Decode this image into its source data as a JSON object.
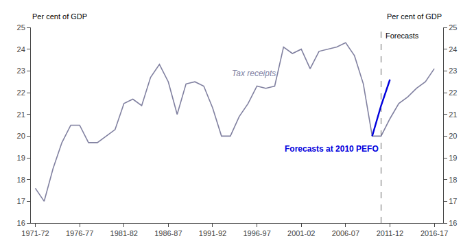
{
  "chart_data": {
    "type": "line",
    "ylabel": "Per cent of GDP",
    "y2label": "Per cent of GDP",
    "forecast_line_x": 2010.5,
    "forecast_line_label": "Forecasts",
    "series": [
      {
        "color": "#8080a0",
        "x": [
          1971.5,
          1972.5,
          1973.5,
          1974.5,
          1975.5,
          1976.5,
          1977.5,
          1978.5,
          1979.5,
          1980.5,
          1981.5,
          1982.5,
          1983.5,
          1984.5,
          1985.5,
          1986.5,
          1987.5,
          1988.5,
          1989.5,
          1990.5,
          1991.5,
          1992.5,
          1993.5,
          1994.5,
          1995.5,
          1996.5,
          1997.5,
          1998.5,
          1999.5,
          2000.5,
          2001.5,
          2002.5,
          2003.5,
          2004.5,
          2005.5,
          2006.5,
          2007.5,
          2008.5,
          2009.5,
          2010.5,
          2011.5,
          2012.5,
          2013.5,
          2014.5,
          2015.5,
          2016.5
        ],
        "values": [
          17.6,
          17.0,
          18.5,
          19.7,
          20.5,
          20.5,
          19.7,
          19.7,
          20.0,
          20.3,
          21.5,
          21.7,
          21.4,
          22.7,
          23.3,
          22.5,
          21.0,
          22.4,
          22.5,
          22.3,
          21.3,
          20.0,
          20.0,
          20.9,
          21.5,
          22.3,
          22.2,
          22.3,
          24.1,
          23.8,
          24.0,
          23.1,
          23.9,
          24.0,
          24.1,
          24.3,
          23.7,
          22.4,
          20.0,
          20.0,
          20.8,
          21.5,
          21.8,
          22.2,
          22.5,
          23.1
        ]
      },
      {
        "color": "#0000dd",
        "x": [
          2009.5,
          2010.5,
          2011.5
        ],
        "values": [
          20.0,
          21.4,
          22.6
        ]
      }
    ],
    "annotations": [
      {
        "text": "Tax receipts",
        "x": 1993.5,
        "y": 22.6,
        "color": "#8080a0"
      },
      {
        "text": "Forecasts at 2010 PEFO",
        "x": 1999.5,
        "y": 19.4,
        "color": "#0000dd"
      }
    ],
    "xlim": [
      1971.0,
      2017.5
    ],
    "xticks": [
      {
        "value": 1971.5,
        "label": "1971-72"
      },
      {
        "value": 1976.5,
        "label": "1976-77"
      },
      {
        "value": 1981.5,
        "label": "1981-82"
      },
      {
        "value": 1986.5,
        "label": "1986-87"
      },
      {
        "value": 1991.5,
        "label": "1991-92"
      },
      {
        "value": 1996.5,
        "label": "1996-97"
      },
      {
        "value": 2001.5,
        "label": "2001-02"
      },
      {
        "value": 2006.5,
        "label": "2006-07"
      },
      {
        "value": 2011.5,
        "label": "2011-12"
      },
      {
        "value": 2016.5,
        "label": "2016-17"
      }
    ],
    "ylim": [
      16,
      25
    ],
    "yticks": [
      16,
      17,
      18,
      19,
      20,
      21,
      22,
      23,
      24,
      25
    ],
    "y2lim": [
      16,
      25
    ],
    "y2ticks": [
      16,
      17,
      18,
      19,
      20,
      21,
      22,
      23,
      24,
      25
    ],
    "grid": false,
    "legend": false
  }
}
